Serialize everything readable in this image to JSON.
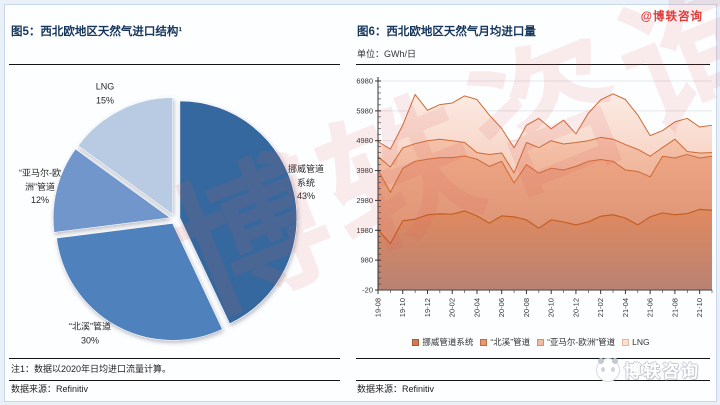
{
  "header": {
    "left_title": "图5：西北欧地区天然气进口结构¹",
    "right_title": "图6：西北欧地区天然气月均进口量",
    "right_unit": "单位：GWh/日",
    "watermark_handle": "@博轶咨询"
  },
  "footer": {
    "note": "注1：数据以2020年日均进口流量计算。",
    "source_left": "数据来源：Refinitiv",
    "source_right": "数据来源：Refinitiv",
    "logo_text": "博轶咨询"
  },
  "watermark_diagonal": "博轶咨询",
  "colors": {
    "pie": [
      "#35689e",
      "#4f81bd",
      "#7196cc",
      "#b9cbe2"
    ],
    "area_line": "#cf6a33",
    "area_bottom_line": "#c55f22",
    "area_fills_top": [
      "#e08a60",
      "#eda584",
      "#f5c2a9",
      "#fcebe3"
    ],
    "area_fills_bottom": [
      "#b98273",
      "#db9274",
      "#ecb096",
      "#f6d0c1"
    ],
    "legend_fill": [
      "#cd7c5a",
      "#e09a77",
      "#f2bb9e",
      "#fadfd2"
    ],
    "legend_border": [
      "#b35a2d",
      "#c26a38",
      "#d88f62",
      "#e7b79b"
    ],
    "grid": "#e3e7ec",
    "axis": "#333333",
    "accent_red": "#e13c3c"
  },
  "chart_data": [
    {
      "type": "pie",
      "title": "西北欧地区天然气进口结构",
      "labels": [
        "挪威管道系统",
        "“北溪”管道",
        "“亚马尔-欧洲”管道",
        "LNG"
      ],
      "values": [
        43,
        30,
        12,
        15
      ],
      "unit": "%",
      "label_lines": [
        [
          "挪威管道",
          "系统",
          "43%"
        ],
        [
          "“北溪”管道",
          "30%"
        ],
        [
          "“亚马尔-欧",
          "洲”管道",
          "12%"
        ],
        [
          "LNG",
          "15%"
        ]
      ]
    },
    {
      "type": "area",
      "stacked": true,
      "title": "西北欧地区天然气月均进口量",
      "unit": "GWh/日",
      "grid": "horizontal",
      "legend_position": "bottom",
      "ylim": [
        -20,
        6980
      ],
      "ytick_step": 1000,
      "ytick_minor_step": 200,
      "yticks": [
        -20,
        980,
        1980,
        2980,
        3980,
        4980,
        5980,
        6980
      ],
      "x_tick_every": 2,
      "x": [
        "19-08",
        "19-09",
        "19-10",
        "19-11",
        "19-12",
        "20-01",
        "20-02",
        "20-03",
        "20-04",
        "20-05",
        "20-06",
        "20-07",
        "20-08",
        "20-09",
        "20-10",
        "20-11",
        "20-12",
        "21-01",
        "21-02",
        "21-03",
        "21-04",
        "21-05",
        "21-06",
        "21-07",
        "21-08",
        "21-09",
        "21-10",
        "21-11"
      ],
      "series": [
        {
          "name": "挪威管道系统",
          "values": [
            2000,
            1530,
            2300,
            2350,
            2500,
            2530,
            2520,
            2630,
            2460,
            2220,
            2460,
            2430,
            2330,
            2050,
            2330,
            2260,
            2160,
            2260,
            2450,
            2500,
            2390,
            2160,
            2430,
            2560,
            2500,
            2540,
            2680,
            2650
          ]
        },
        {
          "name": "“北溪”管道",
          "values": [
            2000,
            1720,
            1750,
            1940,
            1860,
            1885,
            1895,
            1840,
            1900,
            1900,
            1830,
            1130,
            1850,
            1840,
            1730,
            1740,
            1960,
            2030,
            1900,
            1790,
            1610,
            1790,
            1340,
            1900,
            1900,
            1980,
            1720,
            1810
          ]
        },
        {
          "name": "“亚马尔-欧洲”管道",
          "values": [
            450,
            850,
            690,
            590,
            620,
            615,
            565,
            450,
            220,
            400,
            280,
            340,
            740,
            860,
            920,
            870,
            800,
            690,
            740,
            740,
            850,
            740,
            690,
            290,
            630,
            100,
            170,
            120
          ]
        },
        {
          "name": "LNG",
          "values": [
            500,
            600,
            760,
            1650,
            1020,
            1160,
            1265,
            1560,
            1780,
            1320,
            820,
            840,
            580,
            980,
            400,
            800,
            290,
            920,
            1260,
            1520,
            1510,
            1150,
            690,
            570,
            580,
            1110,
            870,
            920
          ]
        }
      ]
    }
  ]
}
